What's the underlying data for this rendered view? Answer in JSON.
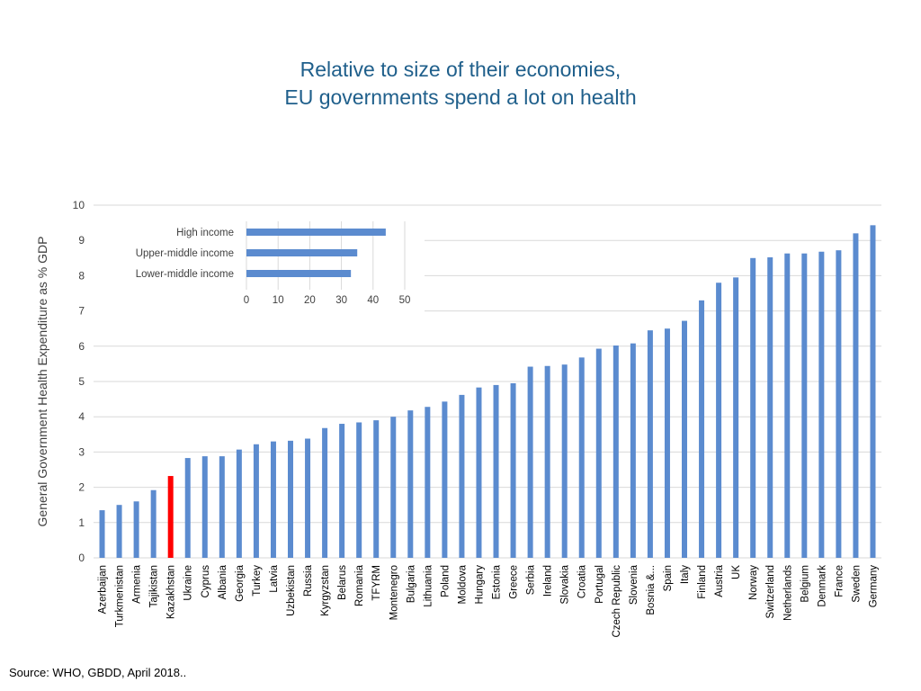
{
  "title": {
    "line1": "Relative to size of their economies,",
    "line2": "EU  governments spend a lot on health"
  },
  "source": "Source: WHO, GBDD, April 2018..",
  "colors": {
    "bar": "#5b8bcf",
    "highlight": "#ff0000",
    "grid": "#d9d9d9",
    "title": "#1f5f8b"
  },
  "chart_data": {
    "type": "bar",
    "title": "",
    "xlabel": "",
    "ylabel": "General Government Health Expenditure as % GDP",
    "ylim": [
      0,
      10
    ],
    "yticks": [
      0,
      1,
      2,
      3,
      4,
      5,
      6,
      7,
      8,
      9,
      10
    ],
    "grid": true,
    "highlight_category": "Kazakhstan",
    "categories": [
      "Azerbaijan",
      "Turkmenistan",
      "Armenia",
      "Tajikistan",
      "Kazakhstan",
      "Ukraine",
      "Cyprus",
      "Albania",
      "Georgia",
      "Turkey",
      "Latvia",
      "Uzbekistan",
      "Russia",
      "Kyrgyzstan",
      "Belarus",
      "Romania",
      "TFYRM",
      "Montenegro",
      "Bulgaria",
      "Lithuania",
      "Poland",
      "Moldova",
      "Hungary",
      "Estonia",
      "Greece",
      "Serbia",
      "Ireland",
      "Slovakia",
      "Croatia",
      "Portugal",
      "Czech Republic",
      "Slovenia",
      "Bosnia &...",
      "Spain",
      "Italy",
      "Finland",
      "Austria",
      "UK",
      "Norway",
      "Switzerland",
      "Netherlands",
      "Belgium",
      "Denmark",
      "France",
      "Sweden",
      "Germany"
    ],
    "values": [
      1.35,
      1.5,
      1.6,
      1.92,
      2.32,
      2.83,
      2.88,
      2.88,
      3.07,
      3.22,
      3.3,
      3.32,
      3.38,
      3.68,
      3.8,
      3.84,
      3.9,
      4.0,
      4.18,
      4.28,
      4.43,
      4.62,
      4.83,
      4.9,
      4.95,
      5.42,
      5.44,
      5.48,
      5.68,
      5.93,
      6.02,
      6.08,
      6.45,
      6.5,
      6.72,
      7.3,
      7.8,
      7.95,
      8.5,
      8.52,
      8.63,
      8.63,
      8.68,
      8.72,
      9.2,
      9.43
    ],
    "inset": {
      "type": "bar",
      "orientation": "horizontal",
      "categories": [
        "High income",
        "Upper-middle income",
        "Lower-middle income"
      ],
      "values": [
        44,
        35,
        33
      ],
      "xlim": [
        0,
        50
      ],
      "xticks": [
        0,
        10,
        20,
        30,
        40,
        50
      ]
    }
  }
}
